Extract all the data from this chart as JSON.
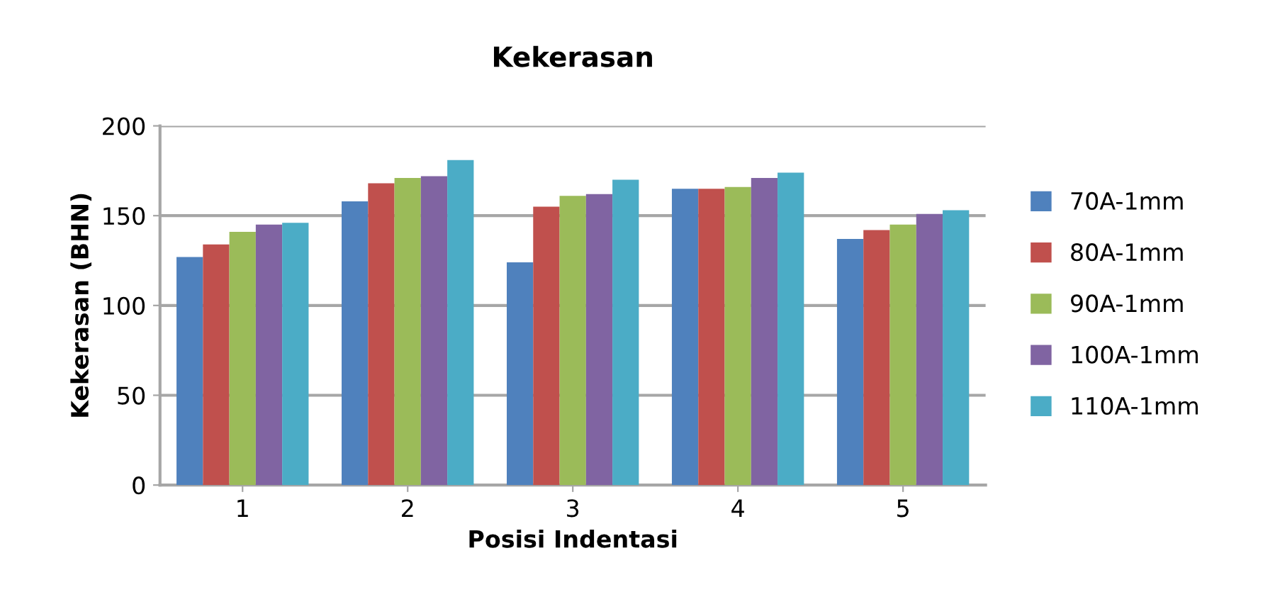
{
  "chart_data": {
    "type": "bar",
    "title": "Kekerasan",
    "xlabel": "Posisi Indentasi",
    "ylabel": "Kekerasan (BHN)",
    "categories": [
      "1",
      "2",
      "3",
      "4",
      "5"
    ],
    "series": [
      {
        "name": "70A-1mm",
        "color": "#4f81bd",
        "values": [
          127,
          158,
          124,
          165,
          137
        ]
      },
      {
        "name": "80A-1mm",
        "color": "#c0504d",
        "values": [
          134,
          168,
          155,
          165,
          142
        ]
      },
      {
        "name": "90A-1mm",
        "color": "#9bbb59",
        "values": [
          141,
          171,
          161,
          166,
          145
        ]
      },
      {
        "name": "100A-1mm",
        "color": "#8064a2",
        "values": [
          145,
          172,
          162,
          171,
          151
        ]
      },
      {
        "name": "110A-1mm",
        "color": "#4bacc6",
        "values": [
          146,
          181,
          170,
          174,
          153
        ]
      }
    ],
    "ylim": [
      0,
      200
    ],
    "yticks": [
      0,
      50,
      100,
      150,
      200
    ],
    "grid": "y",
    "legend": "right"
  }
}
